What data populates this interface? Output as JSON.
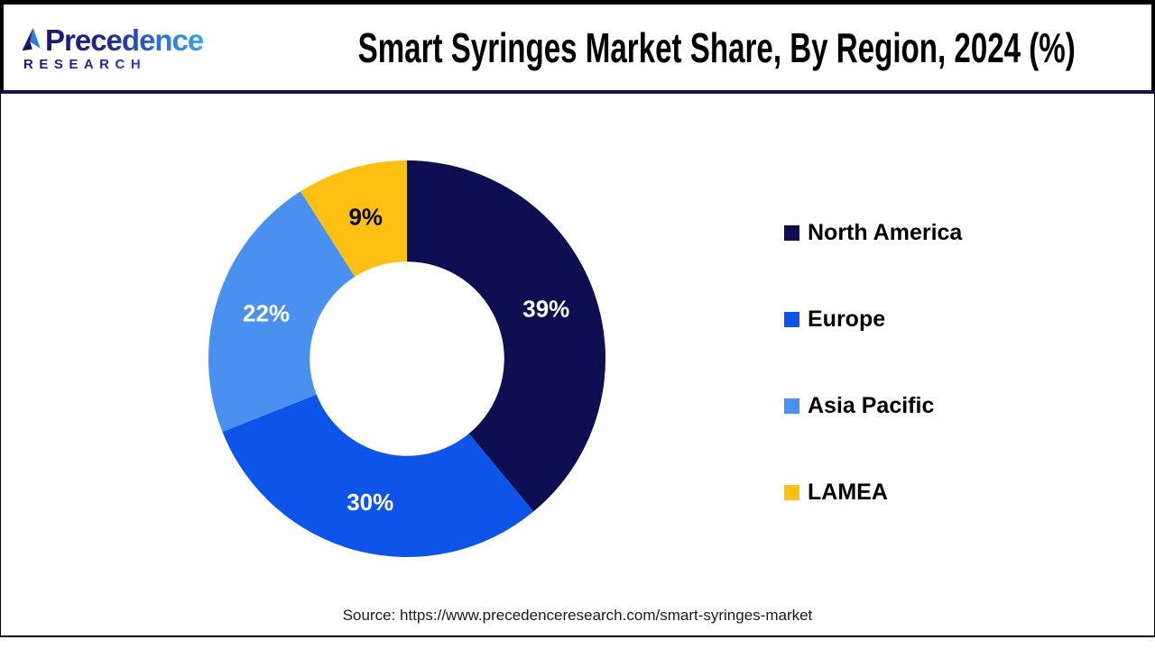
{
  "header": {
    "logo": {
      "name": "Precedence",
      "subtitle": "RESEARCH"
    },
    "title": "Smart Syringes Market Share, By Region, 2024 (%)"
  },
  "chart_data": {
    "type": "pie",
    "subtype": "donut",
    "title": "Smart Syringes Market Share, By Region, 2024 (%)",
    "categories": [
      "North America",
      "Europe",
      "Asia Pacific",
      "LAMEA"
    ],
    "values": [
      39,
      30,
      22,
      9
    ],
    "unit": "%",
    "data_labels": [
      "39%",
      "30%",
      "22%",
      "9%"
    ],
    "data_label_colors": [
      "#ffffff",
      "#ffffff",
      "#ffffff",
      "#000000"
    ],
    "colors": [
      "#0e0e52",
      "#0d55e8",
      "#4a90ee",
      "#fdc013"
    ],
    "start_angle_deg": 0,
    "direction": "clockwise",
    "inner_radius_ratio": 0.49,
    "legend_position": "right"
  },
  "footer": {
    "source_text": "Source: https://www.precedenceresearch.com/smart-syringes-market"
  }
}
